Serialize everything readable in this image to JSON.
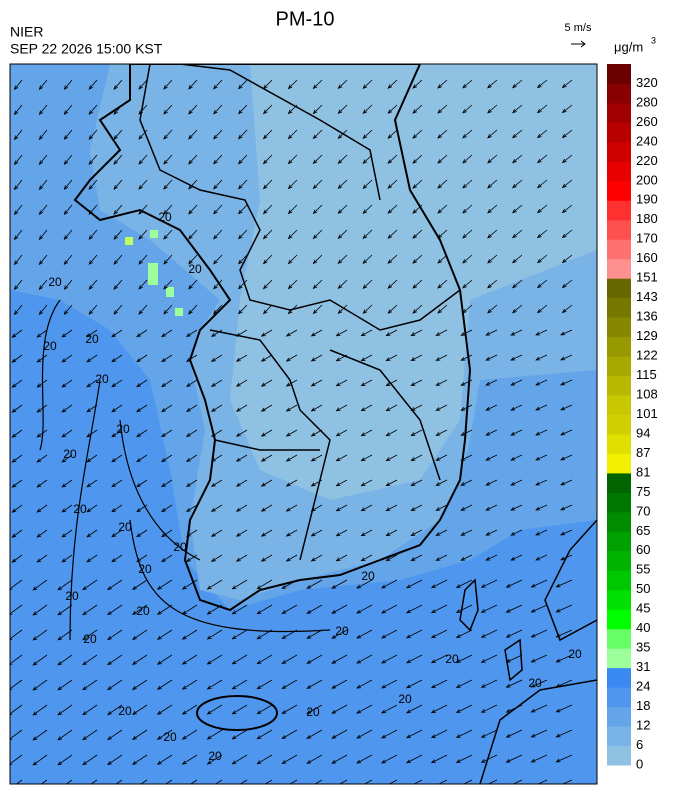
{
  "header": {
    "title": "PM-10",
    "agency": "NIER",
    "timestamp": "SEP 22 2026 15:00 KST",
    "wind_scale": "5 m/s",
    "unit": "μg/m",
    "unit_power": "3"
  },
  "map": {
    "contour_label": "20"
  },
  "colorbar": {
    "levels": [
      0,
      6,
      12,
      18,
      24,
      31,
      35,
      40,
      45,
      50,
      55,
      60,
      65,
      70,
      75,
      81,
      87,
      94,
      101,
      108,
      115,
      122,
      129,
      136,
      143,
      151,
      160,
      170,
      180,
      190,
      200,
      220,
      240,
      260,
      280,
      320
    ],
    "colors": [
      "#8fc1e3",
      "#7ab3e6",
      "#64a5ea",
      "#4f97ee",
      "#3a89f2",
      "#9cff9c",
      "#66ff66",
      "#00ff00",
      "#00e000",
      "#00c800",
      "#00b400",
      "#00a000",
      "#008c00",
      "#007800",
      "#006400",
      "#f0f000",
      "#e0e000",
      "#d0d000",
      "#c8c800",
      "#b8b800",
      "#a8a800",
      "#989800",
      "#888800",
      "#787800",
      "#686800",
      "#ff9090",
      "#ff7070",
      "#ff5050",
      "#ff3030",
      "#ff0000",
      "#e80000",
      "#d00000",
      "#b80000",
      "#a00000",
      "#880000",
      "#6a0000"
    ]
  }
}
